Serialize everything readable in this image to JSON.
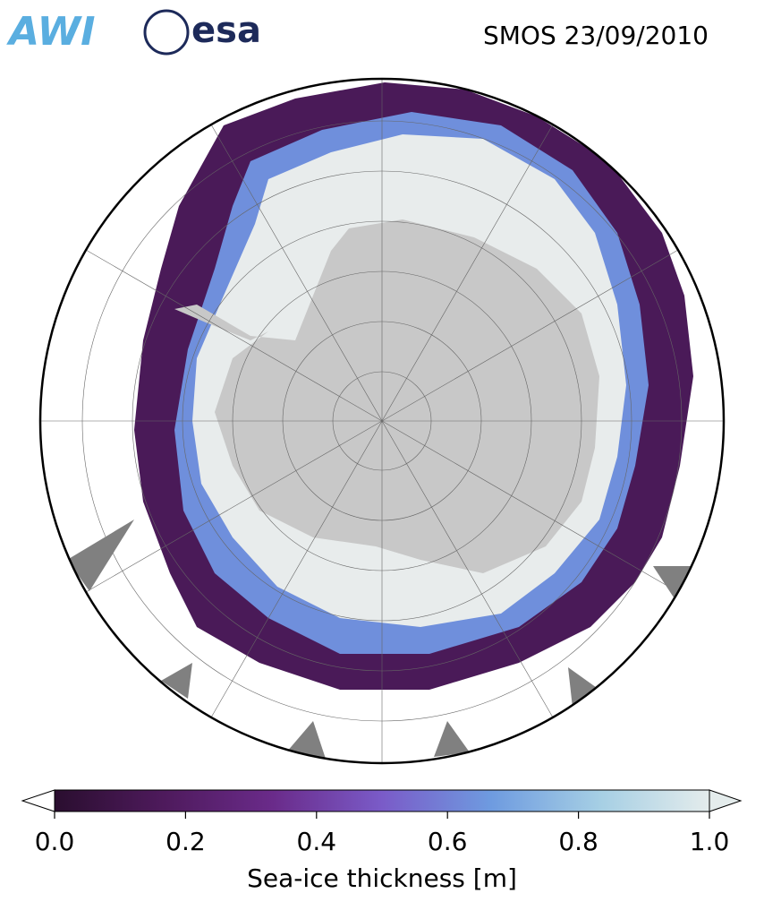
{
  "header": {
    "logo_awi": "AWI",
    "logo_esa": "esa",
    "title": "SMOS 23/09/2010"
  },
  "colorbar": {
    "label": "Sea-ice thickness [m]",
    "lim": [
      0,
      1
    ],
    "ticks": [
      {
        "value": 0,
        "label": "0.0"
      },
      {
        "value": 0.2,
        "label": "0.2"
      },
      {
        "value": 0.4,
        "label": "0.4"
      },
      {
        "value": 0.6,
        "label": "0.6"
      },
      {
        "value": 0.8,
        "label": "0.8"
      },
      {
        "value": 1,
        "label": "1.0"
      }
    ],
    "colors": [
      "#2a0e2f",
      "#4e1a5c",
      "#6a2b8a",
      "#7a5bc8",
      "#6e9be0",
      "#a6cfe4",
      "#e4ecec"
    ]
  }
}
